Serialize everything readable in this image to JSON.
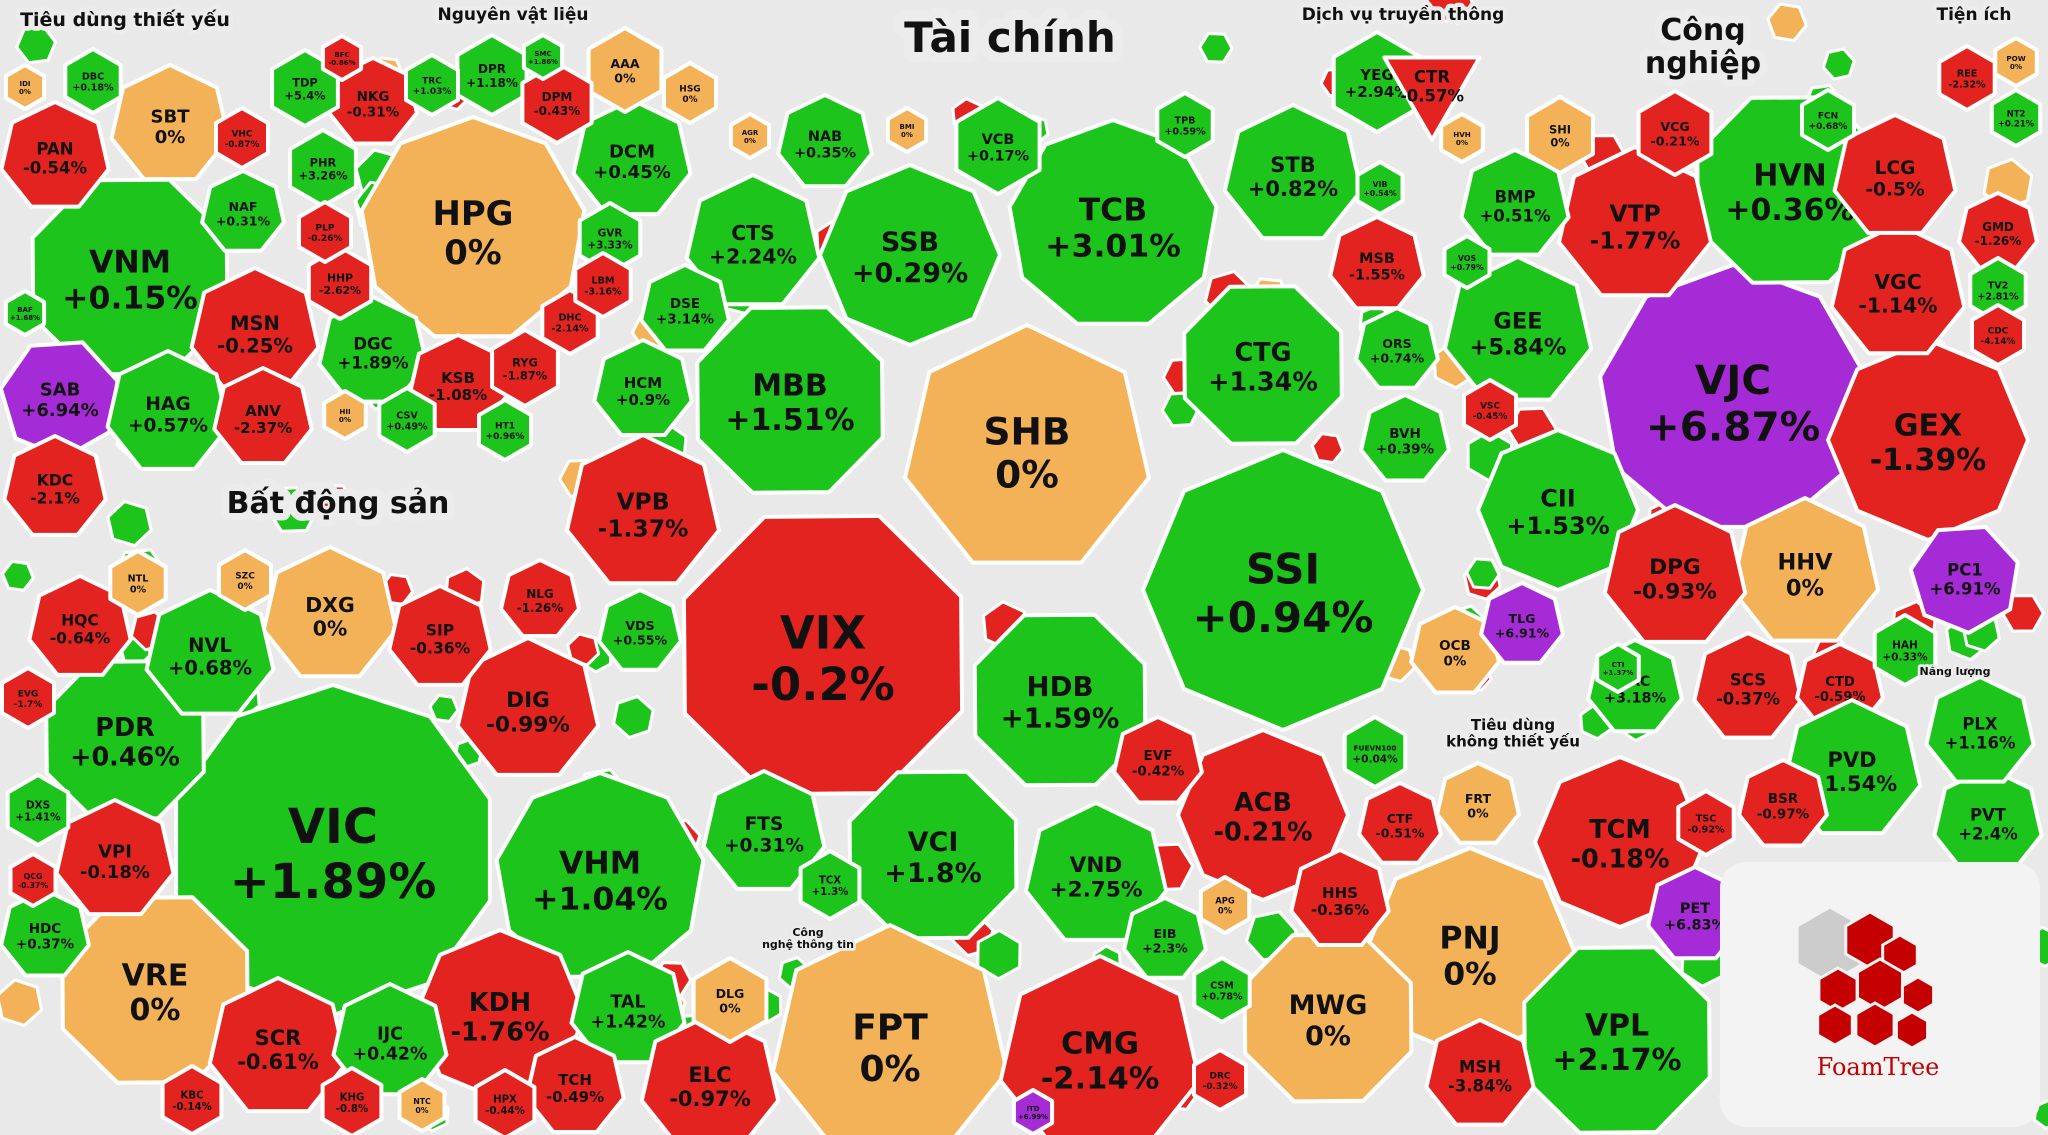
{
  "colors": {
    "up": "#1cc41c",
    "down": "#e3231f",
    "flat": "#f3b257",
    "ceiling": "#a52bd6",
    "background": "#e9e9e9",
    "logo_red": "#c40000"
  },
  "logo": {
    "text": "FoamTree"
  },
  "chart_data": {
    "type": "treemap",
    "title": "",
    "value_unit": "%",
    "sectors": [
      {
        "name": "Tài chính",
        "stocks": [
          {
            "ticker": "SHB",
            "change": 0
          },
          {
            "ticker": "VIX",
            "change": -0.2
          },
          {
            "ticker": "SSI",
            "change": 0.94
          },
          {
            "ticker": "TCB",
            "change": 3.01
          },
          {
            "ticker": "MBB",
            "change": 1.51
          },
          {
            "ticker": "SSB",
            "change": 0.29
          },
          {
            "ticker": "CTS",
            "change": 2.24
          },
          {
            "ticker": "CTG",
            "change": 1.34
          },
          {
            "ticker": "STB",
            "change": 0.82
          },
          {
            "ticker": "VPB",
            "change": -1.37
          },
          {
            "ticker": "HDB",
            "change": 1.59
          },
          {
            "ticker": "VCI",
            "change": 1.8
          },
          {
            "ticker": "VND",
            "change": 2.75
          },
          {
            "ticker": "ACB",
            "change": -0.21
          },
          {
            "ticker": "NAB",
            "change": 0.35
          },
          {
            "ticker": "VCB",
            "change": 0.17
          },
          {
            "ticker": "BMI",
            "change": 0
          },
          {
            "ticker": "DSE",
            "change": 3.14
          },
          {
            "ticker": "HCM",
            "change": 0.9
          },
          {
            "ticker": "MSB",
            "change": -1.55
          },
          {
            "ticker": "ORS",
            "change": 0.74
          },
          {
            "ticker": "BVH",
            "change": 0.39
          },
          {
            "ticker": "FTS",
            "change": 0.31
          },
          {
            "ticker": "TCX",
            "change": 1.3
          },
          {
            "ticker": "EIB",
            "change": 2.3
          },
          {
            "ticker": "EVF",
            "change": -0.42
          },
          {
            "ticker": "OCB",
            "change": 0
          },
          {
            "ticker": "TPB",
            "change": 0.59
          },
          {
            "ticker": "AGR",
            "change": 0
          },
          {
            "ticker": "VIB",
            "change": 0.54
          },
          {
            "ticker": "VDS",
            "change": 0.55
          },
          {
            "ticker": "FUEVN100",
            "change": 0.04
          }
        ]
      },
      {
        "name": "Bất động sản",
        "stocks": [
          {
            "ticker": "VIC",
            "change": 1.89
          },
          {
            "ticker": "VHM",
            "change": 1.04
          },
          {
            "ticker": "VRE",
            "change": 0
          },
          {
            "ticker": "KDH",
            "change": -1.76
          },
          {
            "ticker": "PDR",
            "change": 0.46
          },
          {
            "ticker": "DXG",
            "change": 0
          },
          {
            "ticker": "NVL",
            "change": 0.68
          },
          {
            "ticker": "DIG",
            "change": -0.99
          },
          {
            "ticker": "HQC",
            "change": -0.64
          },
          {
            "ticker": "SIP",
            "change": -0.36
          },
          {
            "ticker": "NLG",
            "change": -1.26
          },
          {
            "ticker": "SCR",
            "change": -0.61
          },
          {
            "ticker": "IJC",
            "change": 0.42
          },
          {
            "ticker": "TAL",
            "change": 1.42
          },
          {
            "ticker": "VPI",
            "change": -0.18
          },
          {
            "ticker": "TCH",
            "change": -0.49
          },
          {
            "ticker": "NTL",
            "change": 0
          },
          {
            "ticker": "SZC",
            "change": 0
          },
          {
            "ticker": "DXS",
            "change": 1.41
          },
          {
            "ticker": "HDC",
            "change": 0.37
          },
          {
            "ticker": "KHG",
            "change": -0.8
          },
          {
            "ticker": "HPX",
            "change": -0.44
          },
          {
            "ticker": "NTC",
            "change": 0
          },
          {
            "ticker": "KBC",
            "change": -0.14
          },
          {
            "ticker": "QCG",
            "change": -0.37
          },
          {
            "ticker": "EVG",
            "change": -1.7
          }
        ]
      },
      {
        "name": "Công nghiệp",
        "stocks": [
          {
            "ticker": "VJC",
            "change": 6.87
          },
          {
            "ticker": "HVN",
            "change": 0.36
          },
          {
            "ticker": "GEX",
            "change": -1.39
          },
          {
            "ticker": "HHV",
            "change": 0
          },
          {
            "ticker": "GEE",
            "change": 5.84
          },
          {
            "ticker": "CII",
            "change": 1.53
          },
          {
            "ticker": "VTP",
            "change": -1.77
          },
          {
            "ticker": "DPG",
            "change": -0.93
          },
          {
            "ticker": "VGC",
            "change": -1.14
          },
          {
            "ticker": "LCG",
            "change": -0.5
          },
          {
            "ticker": "PC1",
            "change": 6.91
          },
          {
            "ticker": "TLG",
            "change": 6.91
          },
          {
            "ticker": "SCS",
            "change": -0.37
          },
          {
            "ticker": "BMP",
            "change": 0.51
          },
          {
            "ticker": "GMD",
            "change": -1.26
          },
          {
            "ticker": "SHI",
            "change": 0
          },
          {
            "ticker": "VCG",
            "change": -0.21
          },
          {
            "ticker": "CTD",
            "change": -0.59
          },
          {
            "ticker": "PAC",
            "change": 3.18
          },
          {
            "ticker": "HAH",
            "change": 0.33
          },
          {
            "ticker": "VSC",
            "change": -0.45
          },
          {
            "ticker": "TV2",
            "change": 2.81
          },
          {
            "ticker": "CDC",
            "change": -4.14
          },
          {
            "ticker": "FCN",
            "change": 0.68
          },
          {
            "ticker": "VOS",
            "change": 0.79
          },
          {
            "ticker": "HVH",
            "change": 0
          },
          {
            "ticker": "CTI",
            "change": 1.37
          }
        ]
      },
      {
        "name": "Tiêu dùng thiết yếu",
        "stocks": [
          {
            "ticker": "VNM",
            "change": 0.15
          },
          {
            "ticker": "SBT",
            "change": 0
          },
          {
            "ticker": "MSN",
            "change": -0.25
          },
          {
            "ticker": "SAB",
            "change": 6.94
          },
          {
            "ticker": "HAG",
            "change": 0.57
          },
          {
            "ticker": "ANV",
            "change": -2.37
          },
          {
            "ticker": "PAN",
            "change": -0.54
          },
          {
            "ticker": "KDC",
            "change": -2.1
          },
          {
            "ticker": "DBC",
            "change": 0.18
          },
          {
            "ticker": "NAF",
            "change": 0.31
          },
          {
            "ticker": "IDI",
            "change": 0
          },
          {
            "ticker": "VHC",
            "change": -0.87
          },
          {
            "ticker": "BAF",
            "change": 1.68
          }
        ]
      },
      {
        "name": "Nguyên vật liệu",
        "stocks": [
          {
            "ticker": "HPG",
            "change": 0
          },
          {
            "ticker": "DCM",
            "change": 0.45
          },
          {
            "ticker": "NKG",
            "change": -0.31
          },
          {
            "ticker": "DPR",
            "change": 1.18
          },
          {
            "ticker": "AAA",
            "change": 0
          },
          {
            "ticker": "TDP",
            "change": 5.4
          },
          {
            "ticker": "DPM",
            "change": -0.43
          },
          {
            "ticker": "PHR",
            "change": 3.26
          },
          {
            "ticker": "DGC",
            "change": 1.89
          },
          {
            "ticker": "KSB",
            "change": -1.08
          },
          {
            "ticker": "HHP",
            "change": -2.62
          },
          {
            "ticker": "PLP",
            "change": -0.26
          },
          {
            "ticker": "RYG",
            "change": -1.87
          },
          {
            "ticker": "DHC",
            "change": -2.14
          },
          {
            "ticker": "GVR",
            "change": 3.33
          },
          {
            "ticker": "LBM",
            "change": -3.16
          },
          {
            "ticker": "HSG",
            "change": 0
          },
          {
            "ticker": "TRC",
            "change": 1.03
          },
          {
            "ticker": "CSV",
            "change": 0.49
          },
          {
            "ticker": "HII",
            "change": 0
          },
          {
            "ticker": "BFC",
            "change": -0.86
          },
          {
            "ticker": "SMC",
            "change": 1.86
          },
          {
            "ticker": "HT1",
            "change": 0.96
          }
        ]
      },
      {
        "name": "Dịch vụ truyền thông",
        "stocks": [
          {
            "ticker": "YEG",
            "change": 2.94
          },
          {
            "ticker": "CTR",
            "change": -0.57
          }
        ]
      },
      {
        "name": "Tiện ích",
        "stocks": [
          {
            "ticker": "POW",
            "change": 0
          },
          {
            "ticker": "REE",
            "change": -2.32
          },
          {
            "ticker": "NT2",
            "change": 0.21
          }
        ]
      },
      {
        "name": "Công nghệ thông tin",
        "stocks": [
          {
            "ticker": "FPT",
            "change": 0
          },
          {
            "ticker": "CMG",
            "change": -2.14
          },
          {
            "ticker": "ELC",
            "change": -0.97
          },
          {
            "ticker": "DLG",
            "change": 0
          },
          {
            "ticker": "ITD",
            "change": 6.99
          }
        ]
      },
      {
        "name": "Tiêu dùng không thiết yếu",
        "stocks": [
          {
            "ticker": "PNJ",
            "change": 0
          },
          {
            "ticker": "MWG",
            "change": 0
          },
          {
            "ticker": "TCM",
            "change": -0.18
          },
          {
            "ticker": "VPL",
            "change": 2.17
          },
          {
            "ticker": "MSH",
            "change": -3.84
          },
          {
            "ticker": "PET",
            "change": 6.83
          },
          {
            "ticker": "HHS",
            "change": -0.36
          },
          {
            "ticker": "FRT",
            "change": 0
          },
          {
            "ticker": "CTF",
            "change": -0.51
          },
          {
            "ticker": "TSC",
            "change": -0.92
          },
          {
            "ticker": "CSM",
            "change": 0.78
          },
          {
            "ticker": "DRC",
            "change": -0.32
          },
          {
            "ticker": "APG",
            "change": 0
          }
        ]
      },
      {
        "name": "Năng lượng",
        "stocks": [
          {
            "ticker": "PVD",
            "change": 1.54
          },
          {
            "ticker": "PVT",
            "change": 2.4
          },
          {
            "ticker": "PLX",
            "change": 1.16
          },
          {
            "ticker": "BSR",
            "change": -0.97
          }
        ]
      }
    ]
  }
}
